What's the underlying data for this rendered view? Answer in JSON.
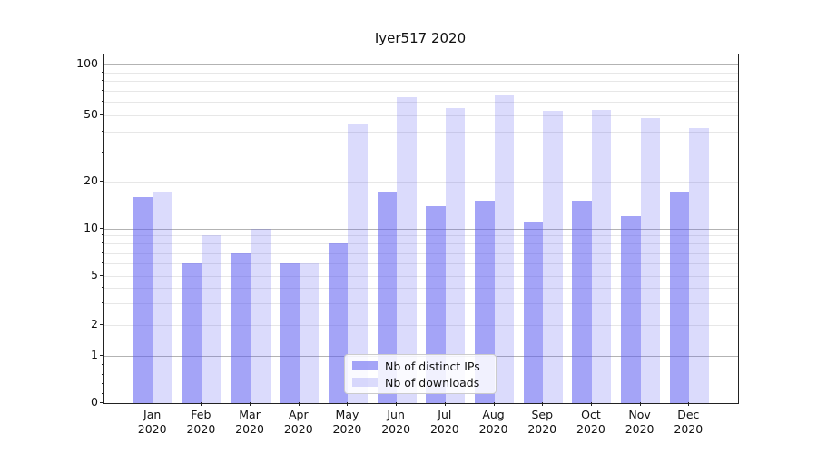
{
  "chart_data": {
    "type": "bar",
    "title": "Iyer517 2020",
    "categories": [
      "Jan",
      "Feb",
      "Mar",
      "Apr",
      "May",
      "Jun",
      "Jul",
      "Aug",
      "Sep",
      "Oct",
      "Nov",
      "Dec"
    ],
    "x_second_line": "2020",
    "series": [
      {
        "name": "Nb of distinct IPs",
        "color": "rgba(90,90,240,0.55)",
        "values": [
          16,
          6,
          7,
          6,
          8,
          17,
          14,
          15,
          11,
          15,
          12,
          17
        ]
      },
      {
        "name": "Nb of downloads",
        "color": "rgba(90,90,240,0.22)",
        "values": [
          17,
          9,
          10,
          6,
          44,
          64,
          55,
          66,
          53,
          54,
          48,
          42
        ]
      }
    ],
    "xlabel": "",
    "ylabel": "",
    "y_scale": "log-like (symlog), linear below 1",
    "y_ticks_labeled": [
      0,
      1,
      2,
      5,
      10,
      20,
      50,
      100
    ],
    "ylim": [
      0,
      116
    ],
    "grid": "horizontal, major at 1/10/100 darker, log minors lighter",
    "legend_position": "lower center"
  },
  "colors": {
    "bar_base": "#5a5af0",
    "grid_major": "#b3b3b3",
    "grid_minor": "#e7e7e7",
    "axis": "#222222",
    "background": "#ffffff"
  }
}
